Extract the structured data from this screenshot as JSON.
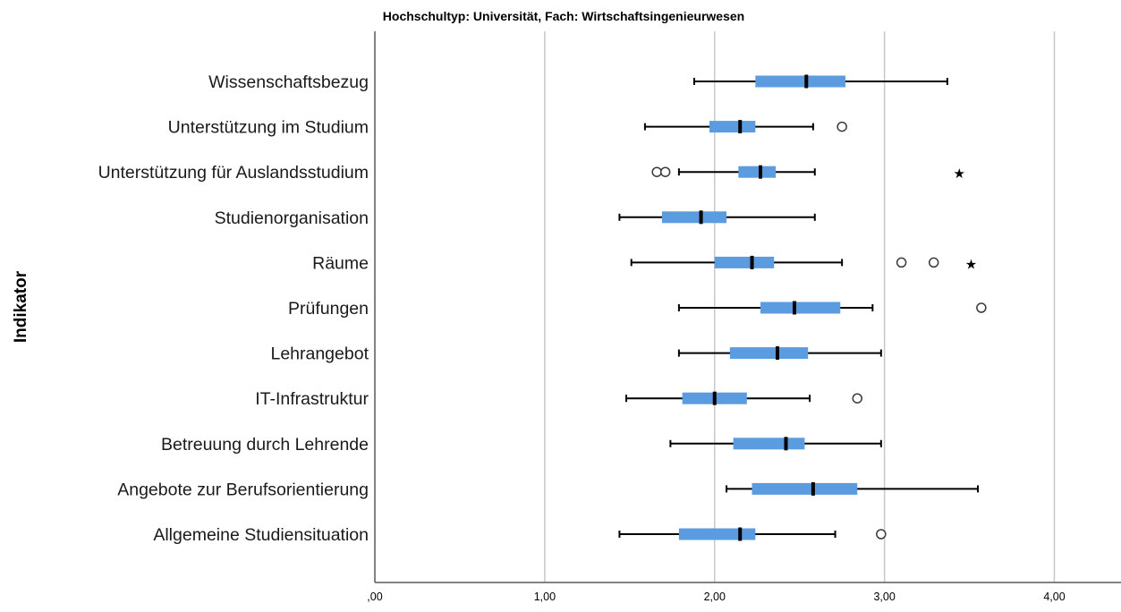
{
  "chart_data": {
    "type": "boxplot",
    "orientation": "horizontal",
    "title": "Hochschultyp: Universität, Fach: Wirtschaftsingenieurwesen",
    "ylabel": "Indikator",
    "xlabel": "",
    "xlim": [
      0,
      4.4
    ],
    "x_ticks": [
      {
        "value": 0,
        "label": ",00"
      },
      {
        "value": 1,
        "label": "1,00"
      },
      {
        "value": 2,
        "label": "2,00"
      },
      {
        "value": 3,
        "label": "3,00"
      },
      {
        "value": 4,
        "label": "4,00"
      }
    ],
    "grid": true,
    "categories": [
      {
        "label": "Wissenschaftsbezug",
        "whisker_low": 1.88,
        "q1": 2.24,
        "median": 2.54,
        "q3": 2.77,
        "whisker_high": 3.37,
        "outliers": [],
        "extremes": []
      },
      {
        "label": "Unterstützung im Studium",
        "whisker_low": 1.59,
        "q1": 1.97,
        "median": 2.15,
        "q3": 2.24,
        "whisker_high": 2.58,
        "outliers": [
          2.75
        ],
        "extremes": []
      },
      {
        "label": "Unterstützung für Auslandsstudium",
        "whisker_low": 1.79,
        "q1": 2.14,
        "median": 2.27,
        "q3": 2.36,
        "whisker_high": 2.59,
        "outliers": [
          1.66,
          1.71
        ],
        "extremes": [
          3.44
        ]
      },
      {
        "label": "Studienorganisation",
        "whisker_low": 1.44,
        "q1": 1.69,
        "median": 1.92,
        "q3": 2.07,
        "whisker_high": 2.59,
        "outliers": [],
        "extremes": []
      },
      {
        "label": "Räume",
        "whisker_low": 1.51,
        "q1": 2.0,
        "median": 2.22,
        "q3": 2.35,
        "whisker_high": 2.75,
        "outliers": [
          3.1,
          3.29
        ],
        "extremes": [
          3.51
        ]
      },
      {
        "label": "Prüfungen",
        "whisker_low": 1.79,
        "q1": 2.27,
        "median": 2.47,
        "q3": 2.74,
        "whisker_high": 2.93,
        "outliers": [
          3.57
        ],
        "extremes": []
      },
      {
        "label": "Lehrangebot",
        "whisker_low": 1.79,
        "q1": 2.09,
        "median": 2.37,
        "q3": 2.55,
        "whisker_high": 2.98,
        "outliers": [],
        "extremes": []
      },
      {
        "label": "IT-Infrastruktur",
        "whisker_low": 1.48,
        "q1": 1.81,
        "median": 2.0,
        "q3": 2.19,
        "whisker_high": 2.56,
        "outliers": [
          2.84
        ],
        "extremes": []
      },
      {
        "label": "Betreuung durch Lehrende",
        "whisker_low": 1.74,
        "q1": 2.11,
        "median": 2.42,
        "q3": 2.53,
        "whisker_high": 2.98,
        "outliers": [],
        "extremes": []
      },
      {
        "label": "Angebote zur Berufsorientierung",
        "whisker_low": 2.07,
        "q1": 2.22,
        "median": 2.58,
        "q3": 2.84,
        "whisker_high": 3.55,
        "outliers": [],
        "extremes": []
      },
      {
        "label": "Allgemeine Studiensituation",
        "whisker_low": 1.44,
        "q1": 1.79,
        "median": 2.15,
        "q3": 2.24,
        "whisker_high": 2.71,
        "outliers": [
          2.98
        ],
        "extremes": []
      }
    ],
    "colors": {
      "box": "#5b9bdf",
      "grid": "#c8c8c8"
    },
    "outlier_marker": "open-circle",
    "extreme_marker": "star"
  }
}
